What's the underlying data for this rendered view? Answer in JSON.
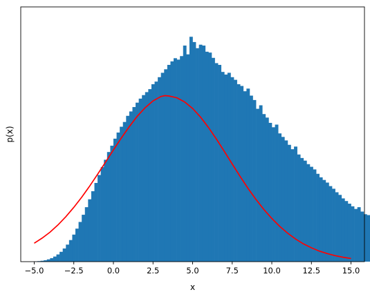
{
  "chart_data": {
    "type": "bar",
    "subtype": "histogram_with_density_curve",
    "title": "",
    "xlabel": "x",
    "ylabel": "p(x)",
    "xlim": [
      -5.85,
      15.85
    ],
    "ylim": [
      0,
      0.145
    ],
    "y_ticks_shown": false,
    "grid": false,
    "legend": "none",
    "x_ticks": [
      -5.0,
      -2.5,
      0.0,
      2.5,
      5.0,
      7.5,
      10.0,
      12.5,
      15.0
    ],
    "x_tick_labels": [
      "−5.0",
      "−2.5",
      "0.0",
      "2.5",
      "5.0",
      "7.5",
      "10.0",
      "12.5",
      "15.0"
    ],
    "histogram": {
      "color": "#1f77b4",
      "bin_start": -5.0,
      "bin_width": 0.2,
      "densities": [
        0.0001,
        0.0003,
        0.0005,
        0.0008,
        0.0013,
        0.002,
        0.0029,
        0.0041,
        0.0056,
        0.0075,
        0.0097,
        0.0123,
        0.0154,
        0.0188,
        0.0226,
        0.0267,
        0.031,
        0.0355,
        0.0401,
        0.0448,
        0.0493,
        0.0538,
        0.058,
        0.0624,
        0.066,
        0.07,
        0.0735,
        0.0768,
        0.0795,
        0.083,
        0.0855,
        0.088,
        0.0905,
        0.0928,
        0.0948,
        0.0965,
        0.0982,
        0.101,
        0.1025,
        0.105,
        0.1075,
        0.1095,
        0.112,
        0.114,
        0.1158,
        0.115,
        0.117,
        0.123,
        0.118,
        0.128,
        0.125,
        0.1215,
        0.1235,
        0.123,
        0.1195,
        0.119,
        0.116,
        0.113,
        0.112,
        0.108,
        0.1065,
        0.1075,
        0.105,
        0.1035,
        0.101,
        0.1,
        0.097,
        0.0985,
        0.0945,
        0.092,
        0.087,
        0.089,
        0.084,
        0.082,
        0.079,
        0.0765,
        0.078,
        0.073,
        0.071,
        0.069,
        0.0665,
        0.064,
        0.0655,
        0.061,
        0.059,
        0.0575,
        0.0555,
        0.054,
        0.0525,
        0.05,
        0.048,
        0.0465,
        0.045,
        0.043,
        0.0415,
        0.0395,
        0.038,
        0.036,
        0.0345,
        0.033,
        0.0315,
        0.03,
        0.031,
        0.0285,
        0.027,
        0.0265,
        0.025,
        0.024,
        0.023,
        0.022,
        0.02,
        0.0205,
        0.019,
        0.018,
        0.0175,
        0.016,
        0.0165,
        0.015,
        0.0145,
        0.0135,
        0.014,
        0.0125,
        0.012,
        0.0115,
        0.011,
        0.0105,
        0.01,
        0.0095,
        0.0098,
        0.009,
        0.0085,
        0.008,
        0.0075,
        0.0072,
        0.007,
        0.0068,
        0.0065,
        0.0062,
        0.006,
        0.0058,
        0.0055,
        0.0052,
        0.005,
        0.0048,
        0.0046,
        0.0044,
        0.0042,
        0.004,
        0.0038,
        0.0035,
        0.0033,
        0.0031,
        0.003,
        0.0029,
        0.0028,
        0.0027,
        0.0025,
        0.0023,
        0.0022,
        0.002,
        0.0018,
        0.0016,
        0.0015,
        0.0014,
        0.0013,
        0.0012,
        0.0011,
        0.001,
        0.0009,
        0.0008,
        0.0007,
        0.0006,
        0.0005,
        0.0004,
        0.0003,
        0.0002,
        0.0002,
        0.0001,
        0.0001,
        0.0001
      ]
    },
    "density_curve": {
      "color": "#ff0000",
      "x": [
        -5.0,
        -4.5,
        -4.0,
        -3.5,
        -3.0,
        -2.5,
        -2.0,
        -1.5,
        -1.0,
        -0.5,
        0.0,
        0.5,
        1.0,
        1.5,
        2.0,
        2.5,
        3.0,
        3.25,
        3.5,
        4.0,
        4.5,
        5.0,
        5.5,
        6.0,
        6.5,
        7.0,
        7.5,
        8.0,
        8.5,
        9.0,
        9.5,
        10.0,
        10.5,
        11.0,
        11.5,
        12.0,
        12.5,
        13.0,
        13.5,
        14.0,
        14.5,
        15.0
      ],
      "y": [
        0.0105,
        0.0134,
        0.0168,
        0.0209,
        0.0256,
        0.0309,
        0.0367,
        0.043,
        0.0497,
        0.0566,
        0.0636,
        0.0704,
        0.0768,
        0.0827,
        0.0876,
        0.0915,
        0.094,
        0.0945,
        0.0943,
        0.0933,
        0.0909,
        0.0872,
        0.0823,
        0.0764,
        0.0698,
        0.0628,
        0.0556,
        0.0485,
        0.0417,
        0.0354,
        0.0297,
        0.0246,
        0.0201,
        0.0162,
        0.0129,
        0.0101,
        0.0079,
        0.006,
        0.0046,
        0.0034,
        0.0025,
        0.0018
      ]
    }
  }
}
